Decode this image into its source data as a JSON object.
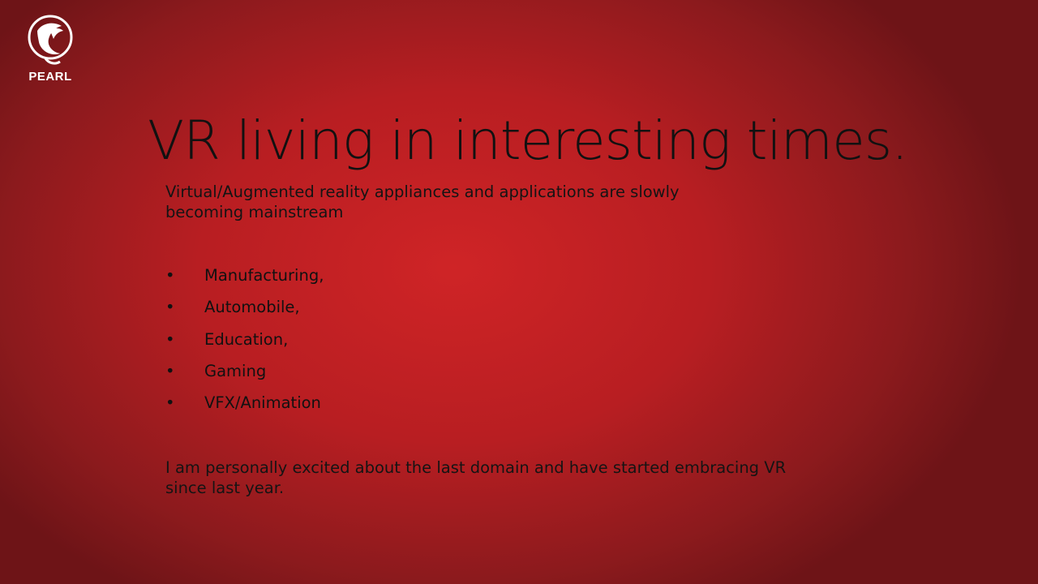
{
  "logo": {
    "icon": "pearl-logo-icon",
    "text": "PEARL"
  },
  "slide": {
    "title": "VR living in interesting times.",
    "intro": "Virtual/Augmented reality appliances and applications are slowly becoming mainstream",
    "bullet_marker": "•",
    "bullets": [
      "Manufacturing,",
      "Automobile,",
      "Education,",
      "Gaming",
      "VFX/Animation"
    ],
    "closing": "I am personally excited about the last domain and have started embracing VR since last year."
  },
  "colors": {
    "background": "#c42024",
    "text": "#111111",
    "logo": "#ffffff"
  }
}
